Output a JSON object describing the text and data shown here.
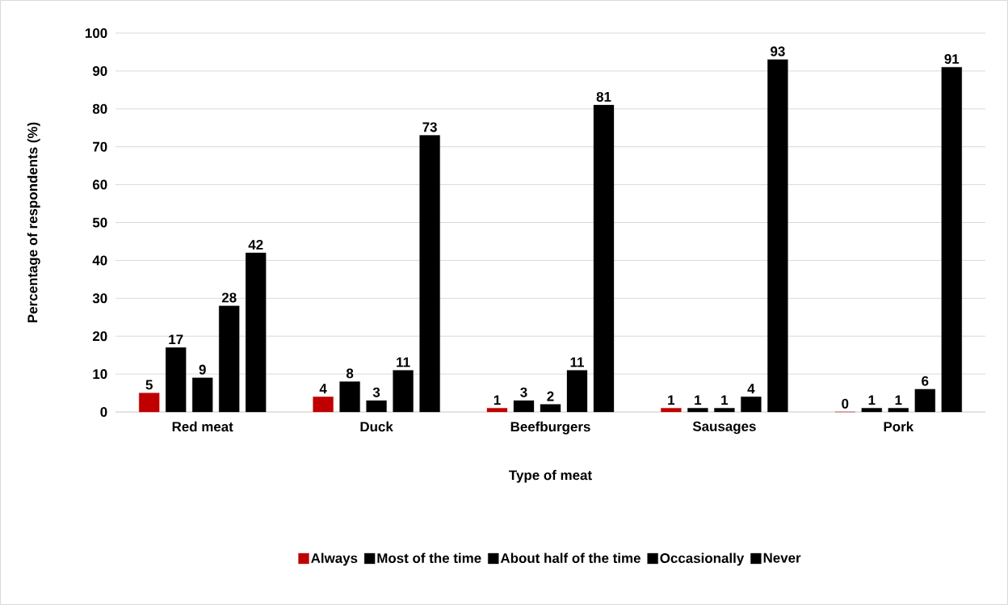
{
  "chart_data": {
    "type": "bar",
    "xlabel": "Type of meat",
    "ylabel": "Percentage of respondents (%)",
    "categories": [
      "Red meat",
      "Duck",
      "Beefburgers",
      "Sausages",
      "Pork"
    ],
    "series": [
      {
        "name": "Always",
        "color": "#c00000",
        "values": [
          5,
          4,
          1,
          1,
          0
        ],
        "value_labels": [
          "5",
          "4",
          "1",
          "1",
          "0"
        ]
      },
      {
        "name": "Most of the time",
        "color": "#000000",
        "values": [
          17,
          8,
          3,
          1,
          1
        ],
        "value_labels": [
          "17",
          "8",
          "3",
          "1",
          "1"
        ]
      },
      {
        "name": "About half of the time",
        "color": "#000000",
        "values": [
          9,
          3,
          2,
          1,
          1
        ],
        "value_labels": [
          "9",
          "3",
          "2",
          "1",
          "1"
        ]
      },
      {
        "name": "Occasionally",
        "color": "#000000",
        "values": [
          28,
          11,
          11,
          4,
          6
        ],
        "value_labels": [
          "28",
          "11",
          "11",
          "4",
          "6"
        ]
      },
      {
        "name": "Never",
        "color": "#000000",
        "values": [
          42,
          73,
          81,
          93,
          91
        ],
        "value_labels": [
          "42",
          "73",
          "81",
          "93",
          "91"
        ]
      }
    ],
    "ylim": [
      0,
      100
    ],
    "yticks": [
      0,
      10,
      20,
      30,
      40,
      50,
      60,
      70,
      80,
      90,
      100
    ],
    "grid": "y",
    "legend": "bottom"
  }
}
